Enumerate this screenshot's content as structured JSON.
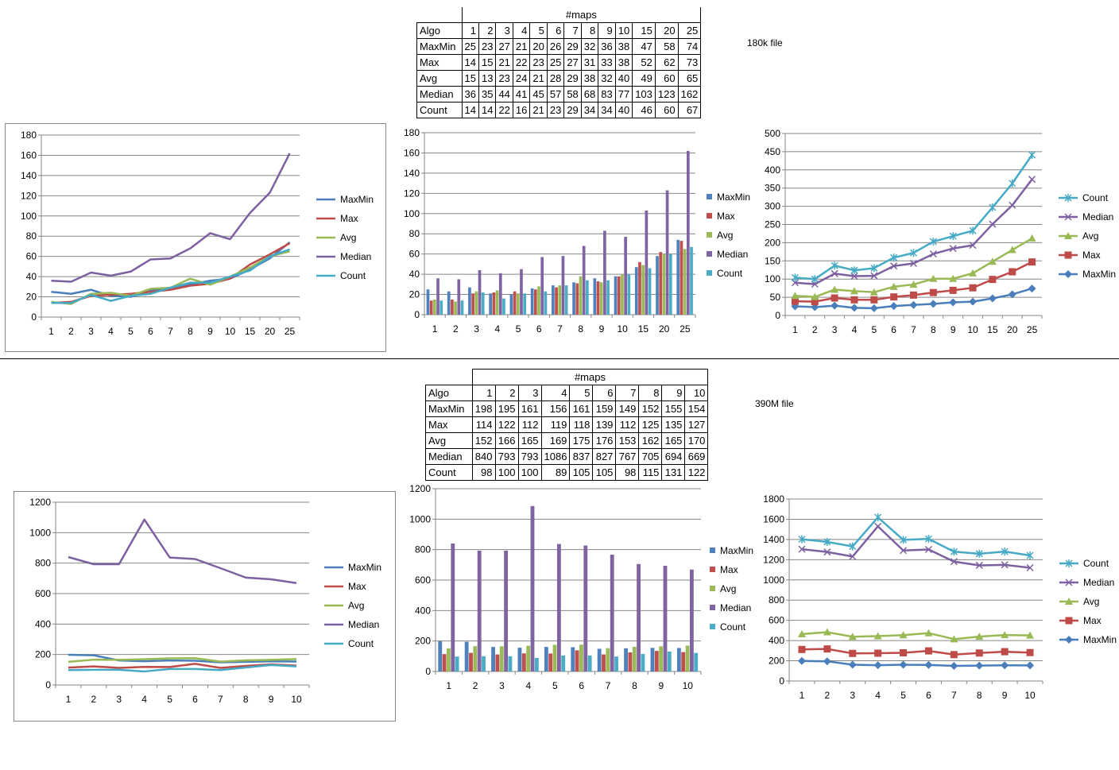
{
  "top_section": {
    "label": "180k file",
    "table": {
      "header": "#maps",
      "corner": "Algo",
      "columns": [
        "1",
        "2",
        "3",
        "4",
        "5",
        "6",
        "7",
        "8",
        "9",
        "10",
        "15",
        "20",
        "25"
      ],
      "rows": [
        {
          "name": "MaxMin",
          "values": [
            "25",
            "23",
            "27",
            "21",
            "20",
            "26",
            "29",
            "32",
            "36",
            "38",
            "47",
            "58",
            "74"
          ]
        },
        {
          "name": "Max",
          "values": [
            "14",
            "15",
            "21",
            "22",
            "23",
            "25",
            "27",
            "31",
            "33",
            "38",
            "52",
            "62",
            "73"
          ]
        },
        {
          "name": "Avg",
          "values": [
            "15",
            "13",
            "23",
            "24",
            "21",
            "28",
            "29",
            "38",
            "32",
            "40",
            "49",
            "60",
            "65"
          ]
        },
        {
          "name": "Median",
          "values": [
            "36",
            "35",
            "44",
            "41",
            "45",
            "57",
            "58",
            "68",
            "83",
            "77",
            "103",
            "123",
            "162"
          ]
        },
        {
          "name": "Count",
          "values": [
            "14",
            "14",
            "22",
            "16",
            "21",
            "23",
            "29",
            "34",
            "34",
            "40",
            "46",
            "60",
            "67"
          ]
        }
      ]
    }
  },
  "bottom_section": {
    "label": "390M file",
    "table": {
      "header": "#maps",
      "corner": "Algo",
      "columns": [
        "1",
        "2",
        "3",
        "4",
        "5",
        "6",
        "7",
        "8",
        "9",
        "10"
      ],
      "rows": [
        {
          "name": "MaxMin",
          "values": [
            "198",
            "195",
            "161",
            "156",
            "161",
            "159",
            "149",
            "152",
            "155",
            "154"
          ]
        },
        {
          "name": "Max",
          "values": [
            "114",
            "122",
            "112",
            "119",
            "118",
            "139",
            "112",
            "125",
            "135",
            "127"
          ]
        },
        {
          "name": "Avg",
          "values": [
            "152",
            "166",
            "165",
            "169",
            "175",
            "176",
            "153",
            "162",
            "165",
            "170"
          ]
        },
        {
          "name": "Median",
          "values": [
            "840",
            "793",
            "793",
            "1086",
            "837",
            "827",
            "767",
            "705",
            "694",
            "669"
          ]
        },
        {
          "name": "Count",
          "values": [
            "98",
            "100",
            "100",
            "89",
            "105",
            "105",
            "98",
            "115",
            "131",
            "122"
          ]
        }
      ]
    }
  },
  "colors": {
    "MaxMin": "#4a7ebb",
    "Max": "#be4b48",
    "Avg": "#98b954",
    "Median": "#7d60a0",
    "Count": "#46aac5",
    "bar_MaxMin": "#4f81bd",
    "bar_Max": "#c0504d",
    "bar_Avg": "#9bbb59",
    "bar_Median": "#8064a2",
    "bar_Count": "#4bacc6",
    "grid": "#868686"
  },
  "chart_data": [
    {
      "id": "top-line",
      "type": "line",
      "categories": [
        "1",
        "2",
        "3",
        "4",
        "5",
        "6",
        "7",
        "8",
        "9",
        "10",
        "15",
        "20",
        "25"
      ],
      "ylim": [
        0,
        180
      ],
      "yticks": [
        "0",
        "20",
        "40",
        "60",
        "80",
        "100",
        "120",
        "140",
        "160",
        "180"
      ],
      "legend": [
        "MaxMin",
        "Max",
        "Avg",
        "Median",
        "Count"
      ],
      "legend_position": "right",
      "grid": true,
      "series": [
        {
          "name": "MaxMin",
          "values": [
            25,
            23,
            27,
            21,
            20,
            26,
            29,
            32,
            36,
            38,
            47,
            58,
            74
          ]
        },
        {
          "name": "Max",
          "values": [
            14,
            15,
            21,
            22,
            23,
            25,
            27,
            31,
            33,
            38,
            52,
            62,
            73
          ]
        },
        {
          "name": "Avg",
          "values": [
            15,
            13,
            23,
            24,
            21,
            28,
            29,
            38,
            32,
            40,
            49,
            60,
            65
          ]
        },
        {
          "name": "Median",
          "values": [
            36,
            35,
            44,
            41,
            45,
            57,
            58,
            68,
            83,
            77,
            103,
            123,
            162
          ]
        },
        {
          "name": "Count",
          "values": [
            14,
            14,
            22,
            16,
            21,
            23,
            29,
            34,
            34,
            40,
            46,
            60,
            67
          ]
        }
      ]
    },
    {
      "id": "top-bar",
      "type": "bar",
      "categories": [
        "1",
        "2",
        "3",
        "4",
        "5",
        "6",
        "7",
        "8",
        "9",
        "10",
        "15",
        "20",
        "25"
      ],
      "ylim": [
        0,
        180
      ],
      "yticks": [
        "0",
        "20",
        "40",
        "60",
        "80",
        "100",
        "120",
        "140",
        "160",
        "180"
      ],
      "legend": [
        "MaxMin",
        "Max",
        "Avg",
        "Median",
        "Count"
      ],
      "legend_position": "right",
      "grid": true,
      "series": [
        {
          "name": "MaxMin",
          "values": [
            25,
            23,
            27,
            21,
            20,
            26,
            29,
            32,
            36,
            38,
            47,
            58,
            74
          ]
        },
        {
          "name": "Max",
          "values": [
            14,
            15,
            21,
            22,
            23,
            25,
            27,
            31,
            33,
            38,
            52,
            62,
            73
          ]
        },
        {
          "name": "Avg",
          "values": [
            15,
            13,
            23,
            24,
            21,
            28,
            29,
            38,
            32,
            40,
            49,
            60,
            65
          ]
        },
        {
          "name": "Median",
          "values": [
            36,
            35,
            44,
            41,
            45,
            57,
            58,
            68,
            83,
            77,
            103,
            123,
            162
          ]
        },
        {
          "name": "Count",
          "values": [
            14,
            14,
            22,
            16,
            21,
            23,
            29,
            34,
            34,
            40,
            46,
            60,
            67
          ]
        }
      ]
    },
    {
      "id": "top-stacked",
      "type": "line",
      "stacked": true,
      "categories": [
        "1",
        "2",
        "3",
        "4",
        "5",
        "6",
        "7",
        "8",
        "9",
        "10",
        "15",
        "20",
        "25"
      ],
      "ylim": [
        0,
        500
      ],
      "yticks": [
        "0",
        "50",
        "100",
        "150",
        "200",
        "250",
        "300",
        "350",
        "400",
        "450",
        "500"
      ],
      "legend": [
        "Count",
        "Median",
        "Avg",
        "Max",
        "MaxMin"
      ],
      "legend_position": "right",
      "grid": true,
      "series": [
        {
          "name": "MaxMin",
          "values": [
            25,
            23,
            27,
            21,
            20,
            26,
            29,
            32,
            36,
            38,
            47,
            58,
            74
          ]
        },
        {
          "name": "Max",
          "values": [
            14,
            15,
            21,
            22,
            23,
            25,
            27,
            31,
            33,
            38,
            52,
            62,
            73
          ]
        },
        {
          "name": "Avg",
          "values": [
            15,
            13,
            23,
            24,
            21,
            28,
            29,
            38,
            32,
            40,
            49,
            60,
            65
          ]
        },
        {
          "name": "Median",
          "values": [
            36,
            35,
            44,
            41,
            45,
            57,
            58,
            68,
            83,
            77,
            103,
            123,
            162
          ]
        },
        {
          "name": "Count",
          "values": [
            14,
            14,
            22,
            16,
            21,
            23,
            29,
            34,
            34,
            40,
            46,
            60,
            67
          ]
        }
      ]
    },
    {
      "id": "bottom-line",
      "type": "line",
      "categories": [
        "1",
        "2",
        "3",
        "4",
        "5",
        "6",
        "7",
        "8",
        "9",
        "10"
      ],
      "ylim": [
        0,
        1200
      ],
      "yticks": [
        "0",
        "200",
        "400",
        "600",
        "800",
        "1000",
        "1200"
      ],
      "legend": [
        "MaxMin",
        "Max",
        "Avg",
        "Median",
        "Count"
      ],
      "legend_position": "right",
      "grid": true,
      "series": [
        {
          "name": "MaxMin",
          "values": [
            198,
            195,
            161,
            156,
            161,
            159,
            149,
            152,
            155,
            154
          ]
        },
        {
          "name": "Max",
          "values": [
            114,
            122,
            112,
            119,
            118,
            139,
            112,
            125,
            135,
            127
          ]
        },
        {
          "name": "Avg",
          "values": [
            152,
            166,
            165,
            169,
            175,
            176,
            153,
            162,
            165,
            170
          ]
        },
        {
          "name": "Median",
          "values": [
            840,
            793,
            793,
            1086,
            837,
            827,
            767,
            705,
            694,
            669
          ]
        },
        {
          "name": "Count",
          "values": [
            98,
            100,
            100,
            89,
            105,
            105,
            98,
            115,
            131,
            122
          ]
        }
      ]
    },
    {
      "id": "bottom-bar",
      "type": "bar",
      "categories": [
        "1",
        "2",
        "3",
        "4",
        "5",
        "6",
        "7",
        "8",
        "9",
        "10"
      ],
      "ylim": [
        0,
        1200
      ],
      "yticks": [
        "0",
        "200",
        "400",
        "600",
        "800",
        "1000",
        "1200"
      ],
      "legend": [
        "MaxMin",
        "Max",
        "Avg",
        "Median",
        "Count"
      ],
      "legend_position": "right",
      "grid": true,
      "series": [
        {
          "name": "MaxMin",
          "values": [
            198,
            195,
            161,
            156,
            161,
            159,
            149,
            152,
            155,
            154
          ]
        },
        {
          "name": "Max",
          "values": [
            114,
            122,
            112,
            119,
            118,
            139,
            112,
            125,
            135,
            127
          ]
        },
        {
          "name": "Avg",
          "values": [
            152,
            166,
            165,
            169,
            175,
            176,
            153,
            162,
            165,
            170
          ]
        },
        {
          "name": "Median",
          "values": [
            840,
            793,
            793,
            1086,
            837,
            827,
            767,
            705,
            694,
            669
          ]
        },
        {
          "name": "Count",
          "values": [
            98,
            100,
            100,
            89,
            105,
            105,
            98,
            115,
            131,
            122
          ]
        }
      ]
    },
    {
      "id": "bottom-stacked",
      "type": "line",
      "stacked": true,
      "categories": [
        "1",
        "2",
        "3",
        "4",
        "5",
        "6",
        "7",
        "8",
        "9",
        "10"
      ],
      "ylim": [
        0,
        1800
      ],
      "yticks": [
        "0",
        "200",
        "400",
        "600",
        "800",
        "1000",
        "1200",
        "1400",
        "1600",
        "1800"
      ],
      "legend": [
        "Count",
        "Median",
        "Avg",
        "Max",
        "MaxMin"
      ],
      "legend_position": "right",
      "grid": true,
      "series": [
        {
          "name": "MaxMin",
          "values": [
            198,
            195,
            161,
            156,
            161,
            159,
            149,
            152,
            155,
            154
          ]
        },
        {
          "name": "Max",
          "values": [
            114,
            122,
            112,
            119,
            118,
            139,
            112,
            125,
            135,
            127
          ]
        },
        {
          "name": "Avg",
          "values": [
            152,
            166,
            165,
            169,
            175,
            176,
            153,
            162,
            165,
            170
          ]
        },
        {
          "name": "Median",
          "values": [
            840,
            793,
            793,
            1086,
            837,
            827,
            767,
            705,
            694,
            669
          ]
        },
        {
          "name": "Count",
          "values": [
            98,
            100,
            100,
            89,
            105,
            105,
            98,
            115,
            131,
            122
          ]
        }
      ]
    }
  ]
}
